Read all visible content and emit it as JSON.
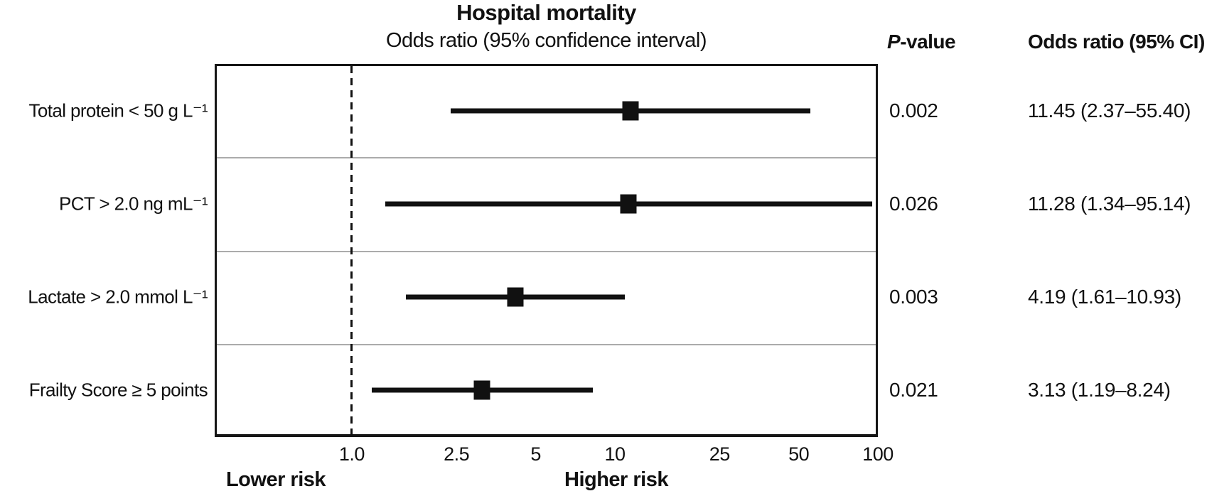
{
  "title": "Hospital mortality",
  "subtitle": "Odds ratio (95% confidence interval)",
  "columns": {
    "p_italic": "P",
    "p_rest": "-value",
    "or_ci": "Odds ratio (95% CI)"
  },
  "axis": {
    "lower_label": "Lower risk",
    "higher_label": "Higher risk"
  },
  "rows": [
    {
      "label": "Total protein < 50 g L⁻¹",
      "p_value": "0.002",
      "or_ci_text": "11.45 (2.37–55.40)",
      "or": 11.45,
      "ci_low": 2.37,
      "ci_high": 55.4
    },
    {
      "label": "PCT > 2.0 ng mL⁻¹",
      "p_value": "0.026",
      "or_ci_text": "11.28 (1.34–95.14)",
      "or": 11.28,
      "ci_low": 1.34,
      "ci_high": 95.14
    },
    {
      "label": "Lactate > 2.0 mmol L⁻¹",
      "p_value": "0.003",
      "or_ci_text": "4.19 (1.61–10.93)",
      "or": 4.19,
      "ci_low": 1.61,
      "ci_high": 10.93
    },
    {
      "label": "Frailty Score ≥ 5 points",
      "p_value": "0.021",
      "or_ci_text": "3.13 (1.19–8.24)",
      "or": 3.13,
      "ci_low": 1.19,
      "ci_high": 8.24
    }
  ],
  "colors": {
    "marker": "#111111",
    "ci_line": "#111111",
    "separator": "#ababab",
    "text": "#111111"
  },
  "chart_data": {
    "type": "forest",
    "title": "Hospital mortality",
    "subtitle": "Odds ratio (95% confidence interval)",
    "xscale": "log",
    "xlim": [
      0.3,
      100
    ],
    "x_ticks": {
      "values": [
        1.0,
        2.5,
        5,
        10,
        25,
        50,
        100
      ],
      "labels": [
        "1.0",
        "2.5",
        "5",
        "10",
        "25",
        "50",
        "100"
      ]
    },
    "reference_line": 1.0,
    "xlabel_low": "Lower risk",
    "xlabel_high": "Higher risk",
    "grid": "horizontal-row-separators",
    "legend": "none",
    "categories": [
      "Total protein < 50 g L⁻¹",
      "PCT > 2.0 ng mL⁻¹",
      "Lactate > 2.0 mmol L⁻¹",
      "Frailty Score ≥ 5 points"
    ],
    "points": [
      {
        "category": "Total protein < 50 g L⁻¹",
        "odds_ratio": 11.45,
        "ci95": [
          2.37,
          55.4
        ],
        "p_value": 0.002
      },
      {
        "category": "PCT > 2.0 ng mL⁻¹",
        "odds_ratio": 11.28,
        "ci95": [
          1.34,
          95.14
        ],
        "p_value": 0.026
      },
      {
        "category": "Lactate > 2.0 mmol L⁻¹",
        "odds_ratio": 4.19,
        "ci95": [
          1.61,
          10.93
        ],
        "p_value": 0.003
      },
      {
        "category": "Frailty Score ≥ 5 points",
        "odds_ratio": 3.13,
        "ci95": [
          1.19,
          8.24
        ],
        "p_value": 0.021
      }
    ]
  }
}
